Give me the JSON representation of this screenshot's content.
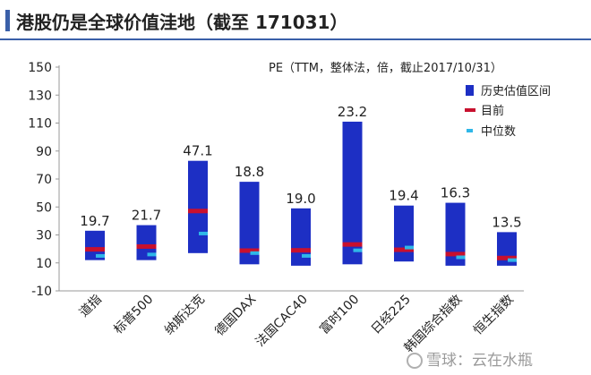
{
  "title": "港股仍是全球价值洼地（截至 171031）",
  "watermark": "雪球：云在水瓶",
  "chart_data": {
    "type": "bar",
    "subtitle": "PE（TTM，整体法，倍，截止2017/10/31）",
    "categories": [
      "道指",
      "标普500",
      "纳斯达克",
      "德国DAX",
      "法国CAC40",
      "富时100",
      "日经225",
      "韩国综合指数",
      "恒生指数"
    ],
    "series": [
      {
        "name": "历史估值区间",
        "type": "range",
        "low": [
          12,
          12,
          17,
          9,
          8,
          9,
          11,
          8,
          8
        ],
        "high": [
          33,
          37,
          83,
          68,
          49,
          111,
          51,
          53,
          32
        ],
        "color": "#1d2fc4"
      },
      {
        "name": "目前",
        "type": "marker",
        "values": [
          19.7,
          21.7,
          47.1,
          18.8,
          19.0,
          23.2,
          19.4,
          16.3,
          13.5
        ],
        "color": "#c8102e"
      },
      {
        "name": "中位数",
        "type": "marker",
        "values": [
          15,
          16,
          31,
          17,
          15,
          19,
          21,
          14,
          12
        ],
        "color": "#2fb7e8"
      }
    ],
    "value_labels": [
      "19.7",
      "21.7",
      "47.1",
      "18.8",
      "19.0",
      "23.2",
      "19.4",
      "16.3",
      "13.5"
    ],
    "yticks": [
      -10,
      10,
      30,
      50,
      70,
      90,
      110,
      130,
      150
    ],
    "ylim": [
      -10,
      150
    ],
    "grid": false,
    "legend_position": "top-right"
  }
}
